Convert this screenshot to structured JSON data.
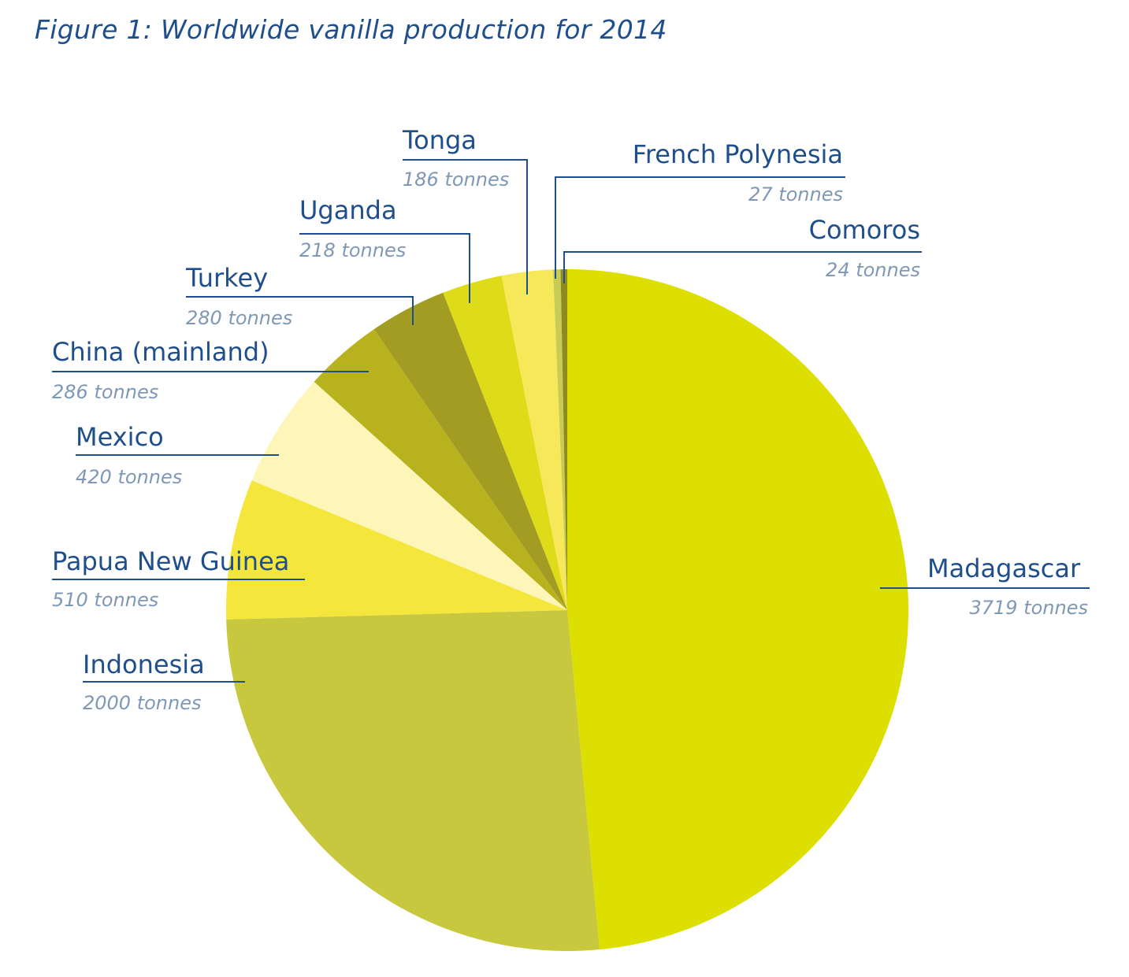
{
  "title": "Figure 1: Worldwide vanilla production for 2014",
  "chart_data": {
    "type": "pie",
    "title": "Figure 1: Worldwide vanilla production for 2014",
    "unit": "tonnes",
    "slices": [
      {
        "label": "Madagascar",
        "value": 3719,
        "value_text": "3719 tonnes",
        "color": "#dcdf00"
      },
      {
        "label": "Indonesia",
        "value": 2000,
        "value_text": "2000 tonnes",
        "color": "#c8c83e"
      },
      {
        "label": "Papua New Guinea",
        "value": 510,
        "value_text": "510 tonnes",
        "color": "#f5e63c"
      },
      {
        "label": "Mexico",
        "value": 420,
        "value_text": "420 tonnes",
        "color": "#fdf6b8"
      },
      {
        "label": "China (mainland)",
        "value": 286,
        "value_text": "286 tonnes",
        "color": "#b8b21e"
      },
      {
        "label": "Turkey",
        "value": 280,
        "value_text": "280 tonnes",
        "color": "#a39c22"
      },
      {
        "label": "Uganda",
        "value": 218,
        "value_text": "218 tonnes",
        "color": "#dedb18"
      },
      {
        "label": "Tonga",
        "value": 186,
        "value_text": "186 tonnes",
        "color": "#f6e858"
      },
      {
        "label": "French Polynesia",
        "value": 27,
        "value_text": "27 tonnes",
        "color": "#c8cc55"
      },
      {
        "label": "Comoros",
        "value": 24,
        "value_text": "24 tonnes",
        "color": "#8f8a20"
      }
    ]
  }
}
